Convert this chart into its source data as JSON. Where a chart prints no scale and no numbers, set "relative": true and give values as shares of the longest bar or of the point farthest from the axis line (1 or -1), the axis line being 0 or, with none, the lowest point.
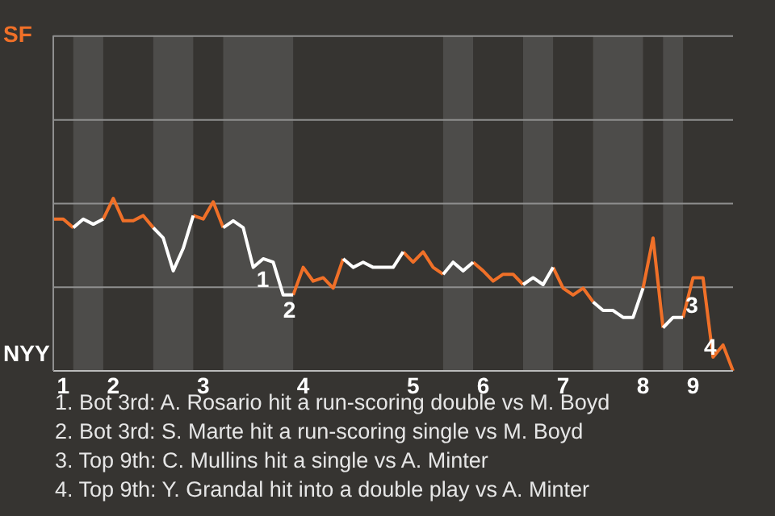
{
  "chart_data": {
    "type": "line",
    "relative": true,
    "categories": [
      null,
      "1",
      null,
      null,
      null,
      null,
      "2",
      null,
      null,
      null,
      null,
      null,
      null,
      null,
      null,
      "3",
      null,
      null,
      null,
      null,
      null,
      null,
      null,
      null,
      null,
      "4",
      null,
      null,
      null,
      null,
      null,
      null,
      null,
      null,
      null,
      null,
      "5",
      null,
      null,
      null,
      null,
      null,
      null,
      "6",
      null,
      null,
      null,
      null,
      null,
      null,
      null,
      "7",
      null,
      null,
      null,
      null,
      null,
      null,
      null,
      "8",
      null,
      null,
      null,
      null,
      "9",
      null,
      null,
      null,
      null
    ],
    "ref_lines": [
      {
        "axis": "y",
        "value": 0.485,
        "color": "#8f8f8f"
      },
      {
        "axis": "y",
        "value": 0.97,
        "color": "#8f8f8f"
      },
      {
        "axis": "y",
        "value": 1.455,
        "color": "#8f8f8f"
      },
      {
        "axis": "y",
        "value": 1.94,
        "color": "#8f8f8f"
      }
    ],
    "legend": "left",
    "marker": "none",
    "series": [
      {
        "name": "SF",
        "color": "#f07028",
        "values": [
          0.88,
          0.88,
          0.83,
          null,
          null,
          0.88,
          1,
          0.87,
          0.87,
          0.9,
          0.83,
          null,
          null,
          null,
          0.9,
          0.88,
          0.98,
          0.83,
          null,
          null,
          null,
          null,
          null,
          null,
          0.44,
          0.6,
          0.52,
          0.54,
          0.48,
          0.65,
          null,
          null,
          null,
          null,
          null,
          0.69,
          0.63,
          0.69,
          0.6,
          0.56,
          null,
          null,
          0.63,
          0.58,
          0.52,
          0.56,
          0.56,
          0.5,
          null,
          null,
          0.6,
          0.48,
          0.44,
          0.48,
          0.4,
          null,
          null,
          null,
          null,
          0.48,
          0.77,
          0.25,
          null,
          0.31,
          0.54,
          0.54,
          0.08,
          0.15,
          0
        ]
      },
      {
        "name": "NYY",
        "color": "#ffffff",
        "values": [
          null,
          null,
          0.83,
          0.88,
          0.85,
          0.88,
          null,
          null,
          null,
          null,
          0.83,
          0.77,
          0.58,
          0.71,
          0.9,
          null,
          null,
          0.83,
          0.87,
          0.83,
          0.6,
          0.65,
          0.63,
          0.44,
          0.44,
          null,
          null,
          null,
          null,
          0.65,
          0.6,
          0.63,
          0.6,
          0.6,
          0.6,
          0.69,
          null,
          null,
          null,
          0.56,
          0.63,
          0.58,
          0.63,
          null,
          null,
          null,
          null,
          0.5,
          0.54,
          0.5,
          0.6,
          null,
          null,
          null,
          0.4,
          0.35,
          0.35,
          0.31,
          0.31,
          0.48,
          null,
          0.25,
          0.31,
          0.31,
          null,
          null,
          null,
          null,
          null
        ]
      }
    ],
    "annotations": [
      {
        "text": "1"
      },
      {
        "text": "2"
      },
      {
        "text": "3"
      },
      {
        "text": "4"
      },
      "1. Bot 3rd: A. Rosario hit a run-scoring double vs M. Boyd",
      "2. Bot 3rd: S. Marte hit a run-scoring single vs M. Boyd",
      "3. Top 9th: C. Mullins hit a single vs A. Minter",
      "4. Top 9th: Y. Grandal hit into a double play vs A. Minter"
    ]
  }
}
